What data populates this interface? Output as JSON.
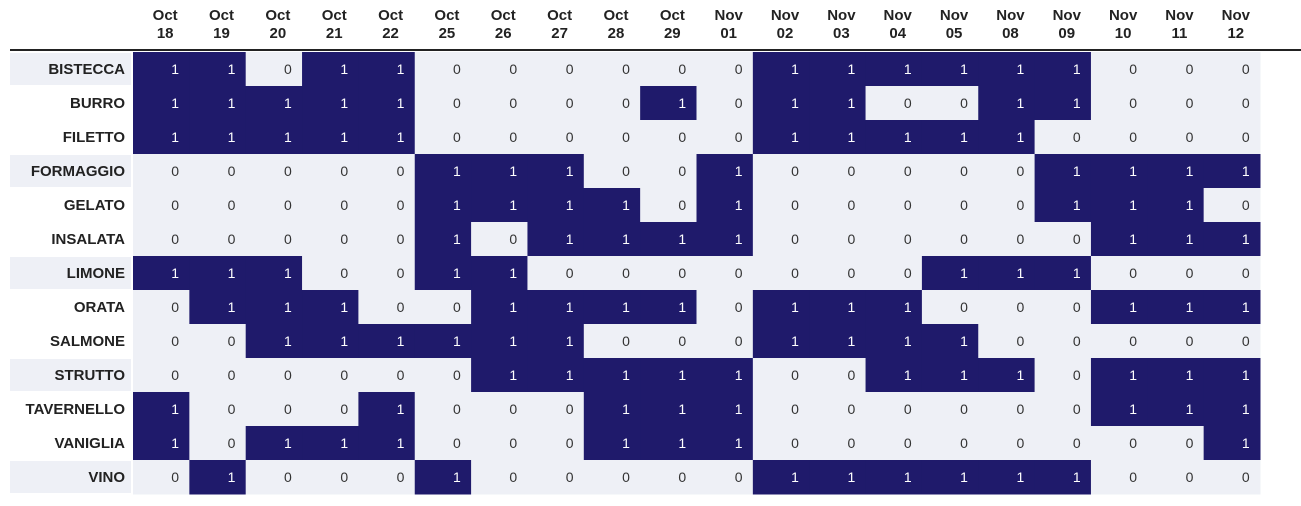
{
  "chart_data": {
    "type": "heatmap",
    "columns": [
      {
        "month": "Oct",
        "day": "18"
      },
      {
        "month": "Oct",
        "day": "19"
      },
      {
        "month": "Oct",
        "day": "20"
      },
      {
        "month": "Oct",
        "day": "21"
      },
      {
        "month": "Oct",
        "day": "22"
      },
      {
        "month": "Oct",
        "day": "25"
      },
      {
        "month": "Oct",
        "day": "26"
      },
      {
        "month": "Oct",
        "day": "27"
      },
      {
        "month": "Oct",
        "day": "28"
      },
      {
        "month": "Oct",
        "day": "29"
      },
      {
        "month": "Nov",
        "day": "01"
      },
      {
        "month": "Nov",
        "day": "02"
      },
      {
        "month": "Nov",
        "day": "03"
      },
      {
        "month": "Nov",
        "day": "04"
      },
      {
        "month": "Nov",
        "day": "05"
      },
      {
        "month": "Nov",
        "day": "08"
      },
      {
        "month": "Nov",
        "day": "09"
      },
      {
        "month": "Nov",
        "day": "10"
      },
      {
        "month": "Nov",
        "day": "11"
      },
      {
        "month": "Nov",
        "day": "12"
      }
    ],
    "rows": [
      "BISTECCA",
      "BURRO",
      "FILETTO",
      "FORMAGGIO",
      "GELATO",
      "INSALATA",
      "LIMONE",
      "ORATA",
      "SALMONE",
      "STRUTTO",
      "TAVERNELLO",
      "VANIGLIA",
      "VINO"
    ],
    "values": [
      [
        1,
        1,
        0,
        1,
        1,
        0,
        0,
        0,
        0,
        0,
        0,
        1,
        1,
        1,
        1,
        1,
        1,
        0,
        0,
        0
      ],
      [
        1,
        1,
        1,
        1,
        1,
        0,
        0,
        0,
        0,
        1,
        0,
        1,
        1,
        0,
        0,
        1,
        1,
        0,
        0,
        0
      ],
      [
        1,
        1,
        1,
        1,
        1,
        0,
        0,
        0,
        0,
        0,
        0,
        1,
        1,
        1,
        1,
        1,
        0,
        0,
        0,
        0
      ],
      [
        0,
        0,
        0,
        0,
        0,
        1,
        1,
        1,
        0,
        0,
        1,
        0,
        0,
        0,
        0,
        0,
        1,
        1,
        1,
        1
      ],
      [
        0,
        0,
        0,
        0,
        0,
        1,
        1,
        1,
        1,
        0,
        1,
        0,
        0,
        0,
        0,
        0,
        1,
        1,
        1,
        0
      ],
      [
        0,
        0,
        0,
        0,
        0,
        1,
        0,
        1,
        1,
        1,
        1,
        0,
        0,
        0,
        0,
        0,
        0,
        1,
        1,
        1
      ],
      [
        1,
        1,
        1,
        0,
        0,
        1,
        1,
        0,
        0,
        0,
        0,
        0,
        0,
        0,
        1,
        1,
        1,
        0,
        0,
        0
      ],
      [
        0,
        1,
        1,
        1,
        0,
        0,
        1,
        1,
        1,
        1,
        0,
        1,
        1,
        1,
        0,
        0,
        0,
        1,
        1,
        1
      ],
      [
        0,
        0,
        1,
        1,
        1,
        1,
        1,
        1,
        0,
        0,
        0,
        1,
        1,
        1,
        1,
        0,
        0,
        0,
        0,
        0
      ],
      [
        0,
        0,
        0,
        0,
        0,
        0,
        1,
        1,
        1,
        1,
        1,
        0,
        0,
        1,
        1,
        1,
        0,
        1,
        1,
        1
      ],
      [
        1,
        0,
        0,
        0,
        1,
        0,
        0,
        0,
        1,
        1,
        1,
        0,
        0,
        0,
        0,
        0,
        0,
        1,
        1,
        1
      ],
      [
        1,
        0,
        1,
        1,
        1,
        0,
        0,
        0,
        1,
        1,
        1,
        0,
        0,
        0,
        0,
        0,
        0,
        0,
        0,
        1
      ],
      [
        0,
        1,
        0,
        0,
        0,
        1,
        0,
        0,
        0,
        0,
        0,
        1,
        1,
        1,
        1,
        1,
        1,
        0,
        0,
        0
      ]
    ],
    "colors": {
      "one": "#1f1a6b",
      "zero": "#eef0f6",
      "text_on_one": "#ffffff",
      "text_on_zero": "#333333",
      "row_label_alt_bg": "#eef0f6",
      "header_rule": "#222222"
    }
  }
}
